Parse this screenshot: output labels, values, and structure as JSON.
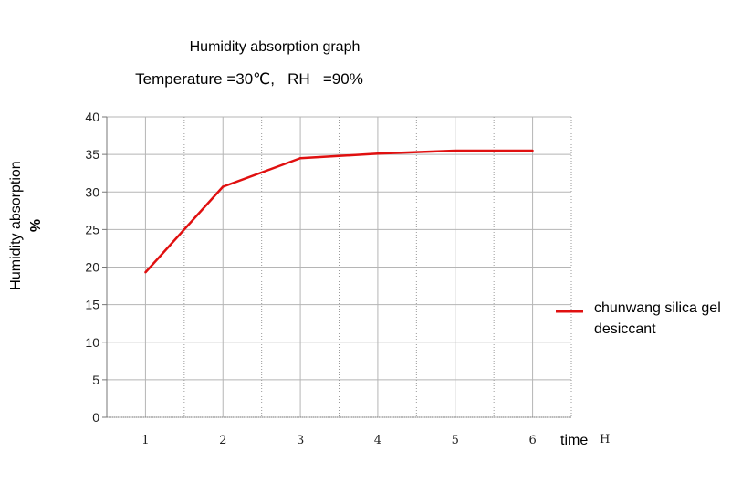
{
  "chart_data": {
    "type": "line",
    "title": "Humidity absorption graph",
    "subtitle": "Temperature =30℃,   RH   =90%",
    "ylabel": "Humidity absorption",
    "ylabel_unit": "%",
    "xlabel": "time",
    "xlabel_unit": "H",
    "x": [
      1,
      2,
      3,
      4,
      5,
      6
    ],
    "xlim": [
      0.5,
      6.5
    ],
    "ylim": [
      0,
      40
    ],
    "y_ticks": [
      0,
      5,
      10,
      15,
      20,
      25,
      30,
      35,
      40
    ],
    "x_ticks": [
      1,
      2,
      3,
      4,
      5,
      6
    ],
    "grid": true,
    "legend_position": "right",
    "series": [
      {
        "name": "chunwang silica gel desiccant",
        "legend_lines": [
          "chunwang silica gel",
          "desiccant"
        ],
        "color": "#e01010",
        "values": [
          19.3,
          30.7,
          34.5,
          35.1,
          35.5,
          35.5
        ]
      }
    ]
  }
}
